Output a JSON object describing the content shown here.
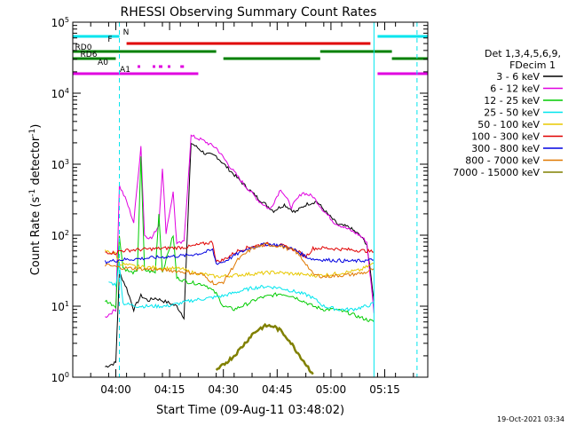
{
  "chart_data": {
    "type": "line",
    "title": "RHESSI Observing Summary Count Rates",
    "xlabel": "Start Time (09-Aug-11 03:48:02)",
    "ylabel": "Count Rate (s",
    "ylabel_exp": "-1",
    "ylabel_tail": " detector",
    "ylabel_close": ")",
    "ylog": true,
    "ylim": [
      1,
      100000
    ],
    "xlim": [
      "03:48",
      "05:27"
    ],
    "x_ticks": [
      "04:00",
      "04:15",
      "04:30",
      "04:45",
      "05:00",
      "05:15"
    ],
    "y_ticks": [
      {
        "value": 1,
        "base": "10",
        "exp": "0"
      },
      {
        "value": 10,
        "base": "10",
        "exp": "1"
      },
      {
        "value": 100,
        "base": "10",
        "exp": "2"
      },
      {
        "value": 1000,
        "base": "10",
        "exp": "3"
      },
      {
        "value": 10000,
        "base": "10",
        "exp": "4"
      },
      {
        "value": 100000,
        "base": "10",
        "exp": "5"
      }
    ],
    "legend_header": [
      "Det 1,3,4,5,6,9,",
      "FDecim 1"
    ],
    "legend_position": "right",
    "timestamp": "19-Oct-2021 03:34",
    "flags": [
      {
        "label": "N",
        "color": "#00e5ee",
        "segments": [
          [
            "03:48",
            "04:01"
          ],
          [
            "05:13",
            "05:27"
          ]
        ]
      },
      {
        "label": "F",
        "color": "#e00000",
        "segments": [
          [
            "04:03",
            "05:11"
          ]
        ]
      },
      {
        "label": "RD0",
        "color": "#008000",
        "segments": [
          [
            "03:48",
            "04:28"
          ],
          [
            "04:57",
            "05:17"
          ]
        ]
      },
      {
        "label": "RD6",
        "color": "#008000",
        "segments": [
          [
            "03:48",
            "04:00"
          ],
          [
            "04:30",
            "04:57"
          ],
          [
            "05:17",
            "05:27"
          ]
        ]
      },
      {
        "label": "A0",
        "color": "#e000e0",
        "segments": [
          [
            "04:12",
            "04:13"
          ],
          [
            "04:18",
            "04:19"
          ]
        ]
      },
      {
        "label": "A1",
        "color": "#e000e0",
        "segments": [
          [
            "03:48",
            "04:23"
          ],
          [
            "05:13",
            "05:27"
          ]
        ]
      }
    ],
    "vlines": [
      {
        "time": "04:01",
        "color": "#00e5ee",
        "dashed": true
      },
      {
        "time": "05:12",
        "color": "#00e5ee",
        "dashed": false
      },
      {
        "time": "05:24",
        "color": "#00e5ee",
        "dashed": true
      }
    ],
    "series": [
      {
        "name": "3 - 6 keV",
        "color": "#000000",
        "points": [
          [
            "03:57",
            1.4
          ],
          [
            "04:00",
            1.6
          ],
          [
            "04:01",
            30
          ],
          [
            "04:03",
            18
          ],
          [
            "04:05",
            9
          ],
          [
            "04:07",
            14
          ],
          [
            "04:09",
            12
          ],
          [
            "04:11",
            13
          ],
          [
            "04:13",
            12
          ],
          [
            "04:15",
            11
          ],
          [
            "04:17",
            10
          ],
          [
            "04:19",
            7
          ],
          [
            "04:21",
            2000
          ],
          [
            "04:25",
            1400
          ],
          [
            "04:28",
            1300
          ],
          [
            "04:32",
            800
          ],
          [
            "04:36",
            500
          ],
          [
            "04:40",
            320
          ],
          [
            "04:44",
            220
          ],
          [
            "04:47",
            270
          ],
          [
            "04:50",
            210
          ],
          [
            "04:53",
            270
          ],
          [
            "04:56",
            300
          ],
          [
            "04:59",
            200
          ],
          [
            "05:02",
            140
          ],
          [
            "05:05",
            130
          ],
          [
            "05:08",
            100
          ],
          [
            "05:10",
            75
          ],
          [
            "05:12",
            12
          ]
        ]
      },
      {
        "name": "6 - 12 keV",
        "color": "#e000e0",
        "points": [
          [
            "03:57",
            7
          ],
          [
            "04:00",
            9
          ],
          [
            "04:01",
            500
          ],
          [
            "04:03",
            300
          ],
          [
            "04:05",
            150
          ],
          [
            "04:07",
            1800
          ],
          [
            "04:08",
            100
          ],
          [
            "04:10",
            90
          ],
          [
            "04:12",
            140
          ],
          [
            "04:13",
            900
          ],
          [
            "04:14",
            110
          ],
          [
            "04:16",
            400
          ],
          [
            "04:17",
            75
          ],
          [
            "04:19",
            80
          ],
          [
            "04:21",
            2500
          ],
          [
            "04:24",
            2200
          ],
          [
            "04:28",
            1700
          ],
          [
            "04:32",
            900
          ],
          [
            "04:36",
            500
          ],
          [
            "04:40",
            300
          ],
          [
            "04:43",
            230
          ],
          [
            "04:46",
            450
          ],
          [
            "04:49",
            250
          ],
          [
            "04:52",
            400
          ],
          [
            "04:55",
            350
          ],
          [
            "04:58",
            220
          ],
          [
            "05:01",
            150
          ],
          [
            "05:05",
            120
          ],
          [
            "05:08",
            100
          ],
          [
            "05:10",
            80
          ],
          [
            "05:12",
            8
          ]
        ]
      },
      {
        "name": "12 - 25 keV",
        "color": "#00cc00",
        "points": [
          [
            "03:57",
            12
          ],
          [
            "04:00",
            10
          ],
          [
            "04:01",
            100
          ],
          [
            "04:02",
            35
          ],
          [
            "04:04",
            30
          ],
          [
            "04:06",
            30
          ],
          [
            "04:07",
            1300
          ],
          [
            "04:08",
            32
          ],
          [
            "04:11",
            30
          ],
          [
            "04:12",
            200
          ],
          [
            "04:13",
            30
          ],
          [
            "04:16",
            100
          ],
          [
            "04:17",
            25
          ],
          [
            "04:20",
            22
          ],
          [
            "04:25",
            20
          ],
          [
            "04:28",
            15
          ],
          [
            "04:30",
            10
          ],
          [
            "04:33",
            9
          ],
          [
            "04:37",
            11
          ],
          [
            "04:40",
            13
          ],
          [
            "04:43",
            14
          ],
          [
            "04:46",
            15
          ],
          [
            "04:49",
            14
          ],
          [
            "04:52",
            12
          ],
          [
            "04:55",
            10
          ],
          [
            "04:58",
            9
          ],
          [
            "05:01",
            9
          ],
          [
            "05:05",
            8
          ],
          [
            "05:08",
            7
          ],
          [
            "05:12",
            6
          ]
        ]
      },
      {
        "name": "25 - 50 keV",
        "color": "#00e5ee",
        "points": [
          [
            "03:58",
            22
          ],
          [
            "04:00",
            20
          ],
          [
            "04:01",
            40
          ],
          [
            "04:02",
            11
          ],
          [
            "04:06",
            10
          ],
          [
            "04:10",
            10
          ],
          [
            "04:14",
            10
          ],
          [
            "04:18",
            11
          ],
          [
            "04:21",
            12
          ],
          [
            "04:26",
            13
          ],
          [
            "04:30",
            14
          ],
          [
            "04:34",
            16
          ],
          [
            "04:38",
            18
          ],
          [
            "04:42",
            19
          ],
          [
            "04:46",
            18
          ],
          [
            "04:50",
            16
          ],
          [
            "04:54",
            14
          ],
          [
            "04:56",
            12
          ],
          [
            "04:58",
            10
          ],
          [
            "05:02",
            9
          ],
          [
            "05:06",
            9
          ],
          [
            "05:10",
            10
          ],
          [
            "05:12",
            11
          ]
        ]
      },
      {
        "name": "50 - 100 keV",
        "color": "#e8c800",
        "points": [
          [
            "03:57",
            60
          ],
          [
            "04:00",
            55
          ],
          [
            "04:01",
            40
          ],
          [
            "04:03",
            38
          ],
          [
            "04:06",
            36
          ],
          [
            "04:10",
            35
          ],
          [
            "04:14",
            34
          ],
          [
            "04:18",
            34
          ],
          [
            "04:21",
            30
          ],
          [
            "04:25",
            28
          ],
          [
            "04:28",
            26
          ],
          [
            "04:32",
            27
          ],
          [
            "04:36",
            28
          ],
          [
            "04:40",
            29
          ],
          [
            "04:44",
            30
          ],
          [
            "04:48",
            29
          ],
          [
            "04:52",
            28
          ],
          [
            "04:56",
            27
          ],
          [
            "05:00",
            28
          ],
          [
            "05:04",
            30
          ],
          [
            "05:08",
            32
          ],
          [
            "05:12",
            40
          ]
        ]
      },
      {
        "name": "100 - 300 keV",
        "color": "#e00000",
        "points": [
          [
            "03:57",
            58
          ],
          [
            "04:00",
            56
          ],
          [
            "04:01",
            60
          ],
          [
            "04:05",
            62
          ],
          [
            "04:10",
            64
          ],
          [
            "04:15",
            66
          ],
          [
            "04:20",
            68
          ],
          [
            "04:24",
            75
          ],
          [
            "04:27",
            80
          ],
          [
            "04:28",
            42
          ],
          [
            "04:30",
            45
          ],
          [
            "04:34",
            60
          ],
          [
            "04:38",
            70
          ],
          [
            "04:42",
            75
          ],
          [
            "04:46",
            72
          ],
          [
            "04:50",
            62
          ],
          [
            "04:53",
            50
          ],
          [
            "04:55",
            65
          ],
          [
            "04:58",
            66
          ],
          [
            "05:02",
            64
          ],
          [
            "05:06",
            62
          ],
          [
            "05:10",
            60
          ],
          [
            "05:12",
            58
          ]
        ]
      },
      {
        "name": "300 - 800 keV",
        "color": "#0000e0",
        "points": [
          [
            "03:57",
            42
          ],
          [
            "04:00",
            44
          ],
          [
            "04:01",
            45
          ],
          [
            "04:05",
            46
          ],
          [
            "04:10",
            48
          ],
          [
            "04:15",
            50
          ],
          [
            "04:20",
            52
          ],
          [
            "04:24",
            56
          ],
          [
            "04:27",
            62
          ],
          [
            "04:28",
            40
          ],
          [
            "04:30",
            42
          ],
          [
            "04:34",
            55
          ],
          [
            "04:38",
            68
          ],
          [
            "04:42",
            75
          ],
          [
            "04:46",
            72
          ],
          [
            "04:50",
            62
          ],
          [
            "04:53",
            50
          ],
          [
            "04:55",
            46
          ],
          [
            "04:58",
            45
          ],
          [
            "05:02",
            44
          ],
          [
            "05:06",
            43
          ],
          [
            "05:10",
            44
          ],
          [
            "05:12",
            45
          ]
        ]
      },
      {
        "name": "800 - 7000 keV",
        "color": "#e07800",
        "points": [
          [
            "03:57",
            38
          ],
          [
            "04:00",
            36
          ],
          [
            "04:01",
            35
          ],
          [
            "04:05",
            34
          ],
          [
            "04:10",
            33
          ],
          [
            "04:15",
            32
          ],
          [
            "04:20",
            30
          ],
          [
            "04:24",
            28
          ],
          [
            "04:28",
            20
          ],
          [
            "04:30",
            22
          ],
          [
            "04:34",
            45
          ],
          [
            "04:38",
            65
          ],
          [
            "04:42",
            74
          ],
          [
            "04:46",
            70
          ],
          [
            "04:50",
            60
          ],
          [
            "04:53",
            40
          ],
          [
            "04:55",
            28
          ],
          [
            "04:58",
            26
          ],
          [
            "05:02",
            27
          ],
          [
            "05:06",
            28
          ],
          [
            "05:10",
            30
          ],
          [
            "05:12",
            34
          ]
        ]
      },
      {
        "name": "7000 - 15000 keV",
        "color": "#808000",
        "points": [
          [
            "04:28",
            1.2
          ],
          [
            "04:30",
            1.5
          ],
          [
            "04:33",
            2
          ],
          [
            "04:36",
            3
          ],
          [
            "04:38",
            4
          ],
          [
            "04:40",
            4.8
          ],
          [
            "04:42",
            5.3
          ],
          [
            "04:44",
            5.2
          ],
          [
            "04:46",
            4.5
          ],
          [
            "04:48",
            3.5
          ],
          [
            "04:50",
            2.5
          ],
          [
            "04:52",
            1.8
          ],
          [
            "04:54",
            1.3
          ],
          [
            "04:55",
            1.1
          ]
        ]
      }
    ]
  }
}
